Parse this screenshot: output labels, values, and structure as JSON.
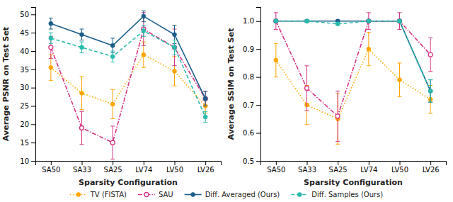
{
  "chart_data": [
    {
      "type": "line",
      "categories": [
        "SA50",
        "SA33",
        "SA25",
        "LV74",
        "LV50",
        "LV26"
      ],
      "xlabel": "Sparsity Configuration",
      "ylabel": "Average PSNR on Test Set",
      "ylim": [
        10,
        52
      ],
      "yticks": [
        10,
        15,
        20,
        25,
        30,
        35,
        40,
        45,
        50
      ],
      "grid": false,
      "series": [
        {
          "color": "#FFA500",
          "marker": "circle",
          "line_style": "dotted",
          "values": [
            35.5,
            28.5,
            25.5,
            39.0,
            34.5,
            25.0
          ],
          "errors": [
            3.5,
            4.5,
            4.0,
            3.5,
            4.0,
            2.0
          ]
        },
        {
          "color": "#D63484",
          "marker": "open-circle",
          "line_style": "dashdot",
          "values": [
            41.0,
            19.0,
            15.0,
            46.0,
            41.0,
            27.0
          ],
          "errors": [
            3.0,
            4.5,
            4.5,
            4.5,
            5.0,
            2.0
          ]
        },
        {
          "color": "#1B5E8A",
          "marker": "circle",
          "line_style": "solid",
          "values": [
            47.5,
            44.5,
            41.5,
            49.5,
            44.5,
            27.0
          ],
          "errors": [
            1.5,
            1.5,
            2.0,
            1.5,
            2.5,
            2.0
          ]
        },
        {
          "color": "#2ABAAB",
          "marker": "circle",
          "line_style": "dashed",
          "values": [
            43.5,
            41.0,
            38.5,
            45.5,
            41.0,
            22.0
          ],
          "errors": [
            1.5,
            1.5,
            1.5,
            1.5,
            2.0,
            1.5
          ]
        }
      ]
    },
    {
      "type": "line",
      "categories": [
        "SA50",
        "SA33",
        "SA25",
        "LV74",
        "LV50",
        "LV26"
      ],
      "xlabel": "Sparsity Configuration",
      "ylabel": "Average SSIM on Test Set",
      "ylim": [
        0.5,
        1.05
      ],
      "yticks": [
        0.5,
        0.6,
        0.7,
        0.8,
        0.9,
        {
          "value": 1.0,
          "label": "1.0"
        }
      ],
      "grid": false,
      "legend": "bottom",
      "series": [
        {
          "name": "TV (FISTA)",
          "color": "#FFA500",
          "marker": "circle",
          "line_style": "dotted",
          "values": [
            0.86,
            0.7,
            0.65,
            0.9,
            0.79,
            0.72
          ],
          "errors": [
            0.06,
            0.07,
            0.09,
            0.06,
            0.06,
            0.05
          ]
        },
        {
          "name": "SAU",
          "color": "#D63484",
          "marker": "open-circle",
          "line_style": "dashdot",
          "values": [
            1.0,
            0.76,
            0.66,
            1.0,
            1.0,
            0.88
          ],
          "errors": [
            0.03,
            0.08,
            0.09,
            0.03,
            0.03,
            0.06
          ]
        },
        {
          "name": "Diff. Averaged (Ours)",
          "color": "#1B5E8A",
          "marker": "circle",
          "line_style": "solid",
          "values": [
            1.0,
            1.0,
            1.0,
            1.0,
            1.0,
            0.75
          ],
          "errors": [
            0.004,
            0.004,
            0.004,
            0.004,
            0.004,
            0.04
          ]
        },
        {
          "name": "Diff. Samples (Ours)",
          "color": "#2ABAAB",
          "marker": "circle",
          "line_style": "dashed",
          "values": [
            1.0,
            1.0,
            0.99,
            1.0,
            1.0,
            0.75
          ],
          "errors": [
            0.004,
            0.004,
            0.004,
            0.004,
            0.004,
            0.04
          ]
        }
      ]
    }
  ]
}
